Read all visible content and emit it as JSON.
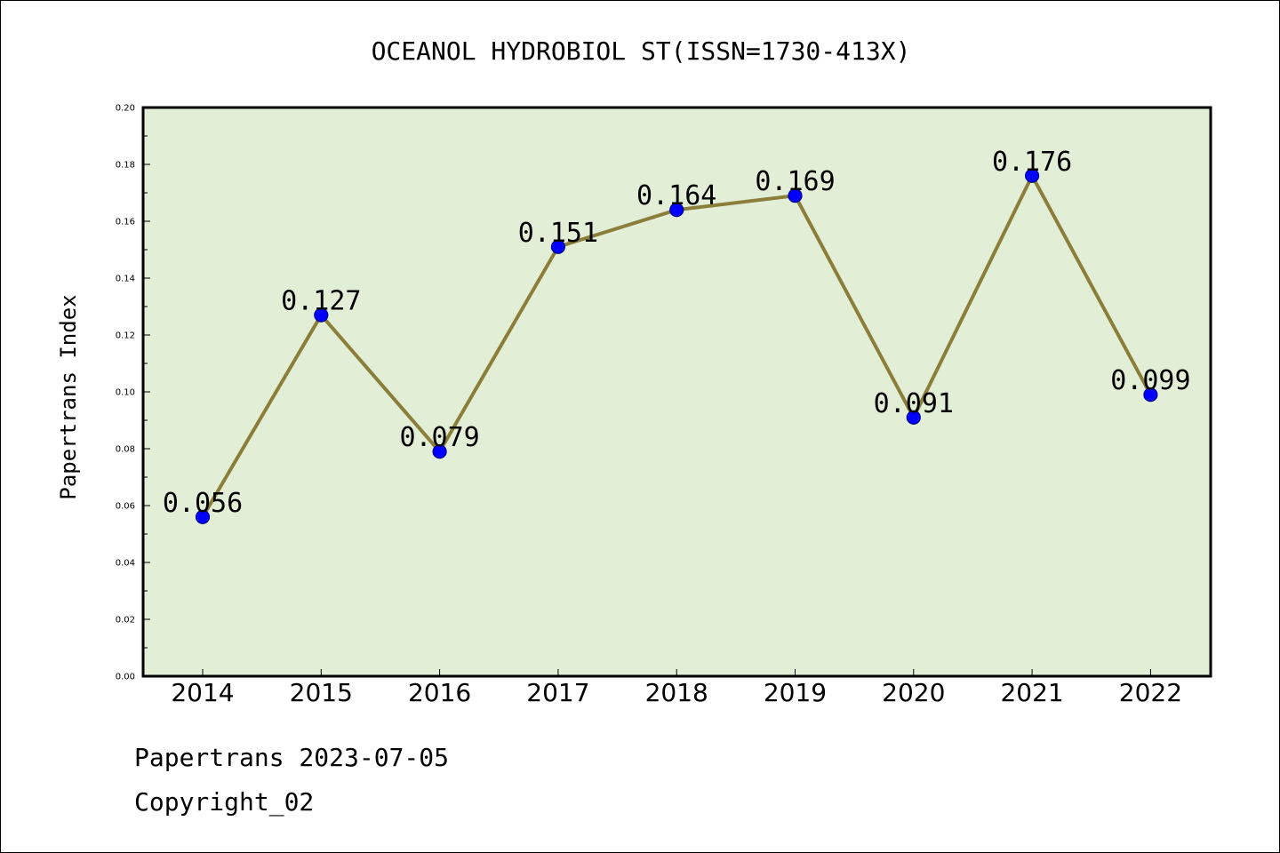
{
  "chart_data": {
    "type": "line",
    "title": "OCEANOL HYDROBIOL ST(ISSN=1730-413X)",
    "ylabel": "Papertrans Index",
    "xlabel": "",
    "categories": [
      "2014",
      "2015",
      "2016",
      "2017",
      "2018",
      "2019",
      "2020",
      "2021",
      "2022"
    ],
    "values": [
      0.056,
      0.127,
      0.079,
      0.151,
      0.164,
      0.169,
      0.091,
      0.176,
      0.099
    ],
    "data_labels": [
      "0.056",
      "0.127",
      "0.079",
      "0.151",
      "0.164",
      "0.169",
      "0.091",
      "0.176",
      "0.099"
    ],
    "ylim": [
      0.0,
      0.2
    ],
    "yticks": [
      "0.00",
      "0.02",
      "0.04",
      "0.06",
      "0.08",
      "0.10",
      "0.12",
      "0.14",
      "0.16",
      "0.18",
      "0.20"
    ],
    "grid": false,
    "colors": {
      "plot_background": "#e2efd6",
      "line": "#8b7d3a",
      "marker_fill": "#0000ff",
      "marker_edge": "#00008b"
    }
  },
  "footer": {
    "line1": "Papertrans 2023-07-05",
    "line2": "Copyright_02"
  }
}
